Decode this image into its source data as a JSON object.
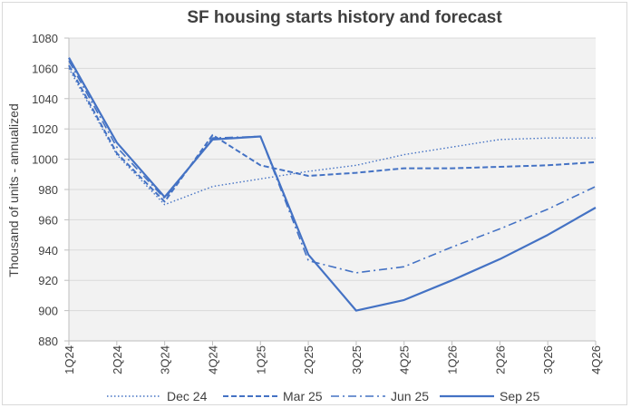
{
  "chart_data": {
    "type": "line",
    "title": "SF housing starts history and forecast",
    "xlabel": "",
    "ylabel": "Thousand of units - annualized",
    "ylim": [
      880,
      1080
    ],
    "yticks": [
      880,
      900,
      920,
      940,
      960,
      980,
      1000,
      1020,
      1040,
      1060,
      1080
    ],
    "grid": true,
    "legend": "bottom",
    "categories": [
      "1Q24",
      "2Q24",
      "3Q24",
      "4Q24",
      "1Q25",
      "2Q25",
      "3Q25",
      "4Q25",
      "1Q26",
      "2Q26",
      "3Q26",
      "4Q26"
    ],
    "series": [
      {
        "name": "Dec 24",
        "style": "dotted",
        "values": [
          1060,
          1003,
          970,
          982,
          987,
          992,
          996,
          1003,
          1008,
          1013,
          1014,
          1014
        ]
      },
      {
        "name": "Mar 25",
        "style": "dashed",
        "values": [
          1062,
          1004,
          972,
          1016,
          996,
          989,
          991,
          994,
          994,
          995,
          996,
          998
        ]
      },
      {
        "name": "Jun 25",
        "style": "dashdot",
        "values": [
          1065,
          1008,
          974,
          1014,
          1015,
          933,
          925,
          929,
          942,
          954,
          967,
          982
        ]
      },
      {
        "name": "Sep 25",
        "style": "solid",
        "values": [
          1067,
          1011,
          975,
          1013,
          1015,
          937,
          900,
          907,
          920,
          934,
          950,
          968
        ]
      }
    ],
    "colors": {
      "line": "#4472c4",
      "plot_bg": "#f2f2f2",
      "grid": "#d9d9d9",
      "text": "#404040"
    }
  }
}
